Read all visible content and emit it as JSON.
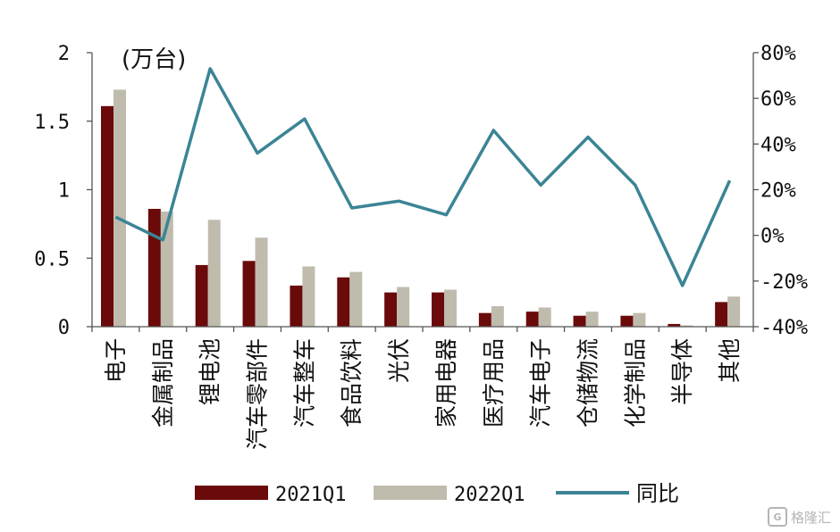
{
  "chart_data": {
    "type": "bar",
    "unit_label": "(万台)",
    "categories": [
      "电子",
      "金属制品",
      "锂电池",
      "汽车零部件",
      "汽车整车",
      "食品饮料",
      "光伏",
      "家用电器",
      "医疗用品",
      "汽车电子",
      "仓储物流",
      "化学制品",
      "半导体",
      "其他"
    ],
    "series": [
      {
        "name": "2021Q1",
        "type": "bar",
        "axis": "left",
        "values": [
          1.61,
          0.86,
          0.45,
          0.48,
          0.3,
          0.36,
          0.25,
          0.25,
          0.1,
          0.11,
          0.08,
          0.08,
          0.02,
          0.18
        ]
      },
      {
        "name": "2022Q1",
        "type": "bar",
        "axis": "right-none",
        "values": [
          1.73,
          0.84,
          0.78,
          0.65,
          0.44,
          0.4,
          0.29,
          0.27,
          0.15,
          0.14,
          0.11,
          0.1,
          0.01,
          0.22
        ]
      },
      {
        "name": "同比",
        "type": "line",
        "axis": "right",
        "values": [
          8,
          -2,
          73,
          36,
          51,
          12,
          15,
          9,
          46,
          22,
          43,
          22,
          -22,
          24
        ]
      }
    ],
    "left_axis": {
      "ylim": [
        0,
        2
      ],
      "ticks": [
        "0",
        "0.5",
        "1",
        "1.5",
        "2"
      ]
    },
    "right_axis": {
      "ylim": [
        -40,
        80
      ],
      "ticks": [
        "-40%",
        "-20%",
        "0%",
        "20%",
        "40%",
        "60%",
        "80%"
      ]
    },
    "legend_position": "bottom",
    "colors": {
      "2021Q1": "#6b0a0a",
      "2022Q1": "#bfbcae",
      "同比": "#3b8495"
    }
  },
  "watermark": {
    "logo": "G",
    "text": "格隆汇"
  }
}
